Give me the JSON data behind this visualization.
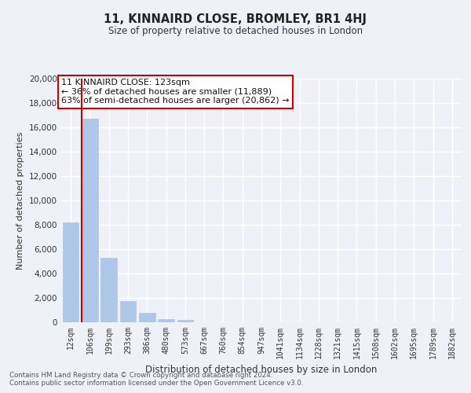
{
  "title": "11, KINNAIRD CLOSE, BROMLEY, BR1 4HJ",
  "subtitle": "Size of property relative to detached houses in London",
  "xlabel": "Distribution of detached houses by size in London",
  "ylabel": "Number of detached properties",
  "bar_labels": [
    "12sqm",
    "106sqm",
    "199sqm",
    "293sqm",
    "386sqm",
    "480sqm",
    "573sqm",
    "667sqm",
    "760sqm",
    "854sqm",
    "947sqm",
    "1041sqm",
    "1134sqm",
    "1228sqm",
    "1321sqm",
    "1415sqm",
    "1508sqm",
    "1602sqm",
    "1695sqm",
    "1789sqm",
    "1882sqm"
  ],
  "bar_values": [
    8200,
    16700,
    5300,
    1750,
    750,
    250,
    200,
    0,
    0,
    0,
    0,
    0,
    0,
    0,
    0,
    0,
    0,
    0,
    0,
    0,
    0
  ],
  "bar_color": "#aec6e8",
  "vline_color": "#cc0000",
  "annotation_title": "11 KINNAIRD CLOSE: 123sqm",
  "annotation_line1": "← 36% of detached houses are smaller (11,889)",
  "annotation_line2": "63% of semi-detached houses are larger (20,862) →",
  "annotation_box_color": "#ffffff",
  "annotation_box_edge": "#cc0000",
  "ylim": [
    0,
    20000
  ],
  "yticks": [
    0,
    2000,
    4000,
    6000,
    8000,
    10000,
    12000,
    14000,
    16000,
    18000,
    20000
  ],
  "footnote1": "Contains HM Land Registry data © Crown copyright and database right 2024.",
  "footnote2": "Contains public sector information licensed under the Open Government Licence v3.0.",
  "background_color": "#eef2f8",
  "grid_color": "#ffffff"
}
